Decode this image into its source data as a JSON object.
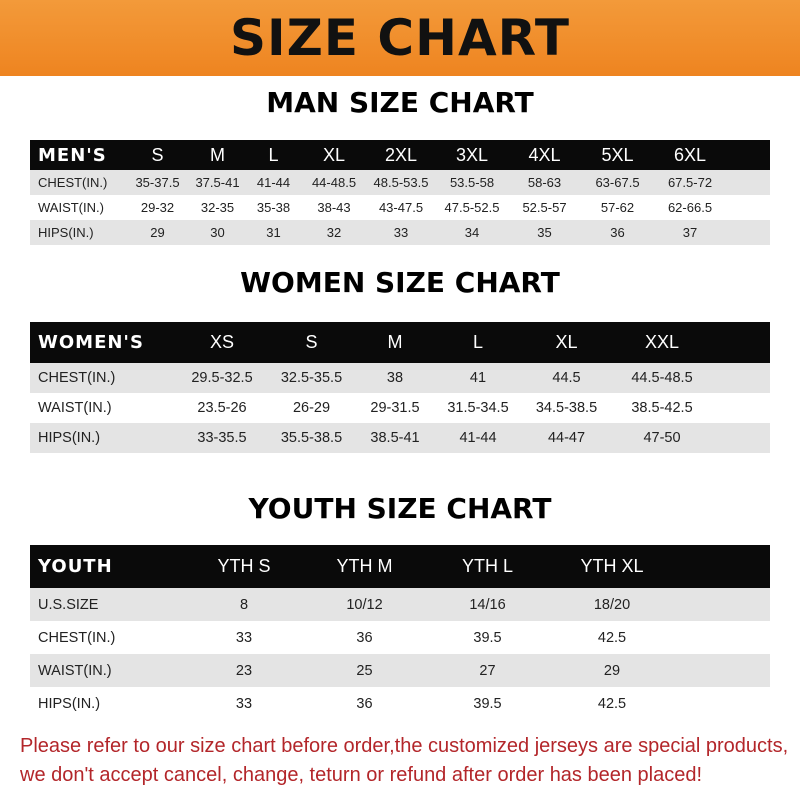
{
  "banner": {
    "title": "SIZE CHART",
    "color": "#f08a24"
  },
  "men": {
    "title": "MAN SIZE CHART",
    "header": [
      "MEN'S",
      "S",
      "M",
      "L",
      "XL",
      "2XL",
      "3XL",
      "4XL",
      "5XL",
      "6XL"
    ],
    "rows": [
      [
        "CHEST(IN.)",
        "35-37.5",
        "37.5-41",
        "41-44",
        "44-48.5",
        "48.5-53.5",
        "53.5-58",
        "58-63",
        "63-67.5",
        "67.5-72"
      ],
      [
        "WAIST(IN.)",
        "29-32",
        "32-35",
        "35-38",
        "38-43",
        "43-47.5",
        "47.5-52.5",
        "52.5-57",
        "57-62",
        "62-66.5"
      ],
      [
        "HIPS(IN.)",
        "29",
        "30",
        "31",
        "32",
        "33",
        "34",
        "35",
        "36",
        "37"
      ]
    ]
  },
  "women": {
    "title": "WOMEN SIZE CHART",
    "header": [
      "WOMEN'S",
      "XS",
      "S",
      "M",
      "L",
      "XL",
      "XXL"
    ],
    "rows": [
      [
        "CHEST(IN.)",
        "29.5-32.5",
        "32.5-35.5",
        "38",
        "41",
        "44.5",
        "44.5-48.5"
      ],
      [
        "WAIST(IN.)",
        "23.5-26",
        "26-29",
        "29-31.5",
        "31.5-34.5",
        "34.5-38.5",
        "38.5-42.5"
      ],
      [
        "HIPS(IN.)",
        "33-35.5",
        "35.5-38.5",
        "38.5-41",
        "41-44",
        "44-47",
        "47-50"
      ]
    ]
  },
  "youth": {
    "title": "YOUTH SIZE CHART",
    "header": [
      "YOUTH",
      "YTH S",
      "YTH M",
      "YTH L",
      "YTH XL"
    ],
    "rows": [
      [
        "U.S.SIZE",
        "8",
        "10/12",
        "14/16",
        "18/20"
      ],
      [
        "CHEST(IN.)",
        "33",
        "36",
        "39.5",
        "42.5"
      ],
      [
        "WAIST(IN.)",
        "23",
        "25",
        "27",
        "29"
      ],
      [
        "HIPS(IN.)",
        "33",
        "36",
        "39.5",
        "42.5"
      ]
    ]
  },
  "note": {
    "line1": "Please refer to our size chart before order,the customized jerseys are special products,",
    "line2": "we don't accept cancel, change, teturn or refund after order has been placed!"
  }
}
